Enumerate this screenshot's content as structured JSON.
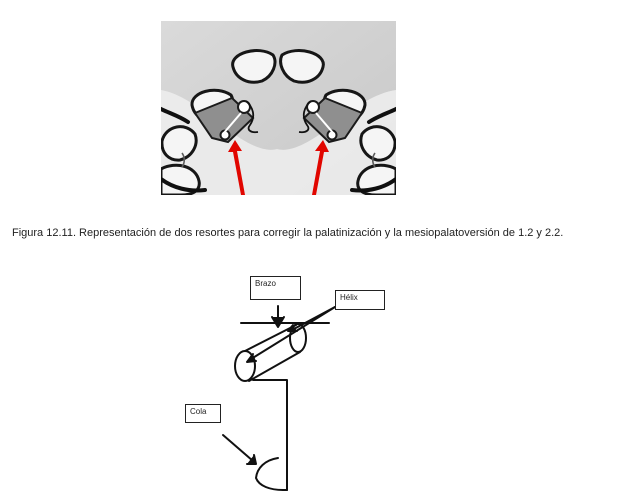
{
  "figure": {
    "caption": "Figura 12.11. Representación de dos resortes para corregir la palatinización y la mesiopalatoversión de 1.2 y 2.2."
  },
  "diagram": {
    "labels": {
      "brazo": "Brazo",
      "helix": "Hélix",
      "cola": "Cola"
    }
  },
  "colors": {
    "arrow_red": "#e10600",
    "photo_bg": "#d4d4d4",
    "ink": "#111111"
  }
}
